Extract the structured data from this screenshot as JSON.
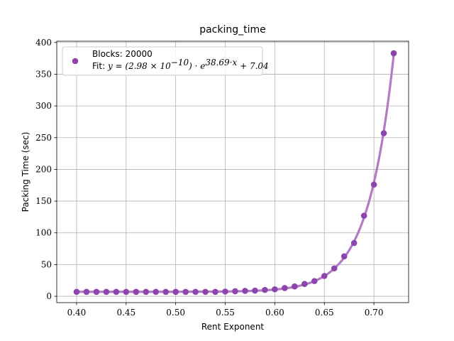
{
  "chart_data": {
    "type": "line",
    "title": "packing_time",
    "xlabel": "Rent Exponent",
    "ylabel": "Packing Time (sec)",
    "xlim": [
      0.38,
      0.735
    ],
    "ylim": [
      -10,
      402
    ],
    "x_ticks": [
      0.4,
      0.45,
      0.5,
      0.55,
      0.6,
      0.65,
      0.7
    ],
    "x_tick_labels": [
      "0.40",
      "0.45",
      "0.50",
      "0.55",
      "0.60",
      "0.65",
      "0.70"
    ],
    "y_ticks": [
      0,
      50,
      100,
      150,
      200,
      250,
      300,
      350,
      400
    ],
    "y_tick_labels": [
      "0",
      "50",
      "100",
      "150",
      "200",
      "250",
      "300",
      "350",
      "400"
    ],
    "grid": true,
    "legend_position": "top-left",
    "series": [
      {
        "name": "Blocks: 20000",
        "kind": "scatter",
        "color": "#8e44ad",
        "x": [
          0.4,
          0.41,
          0.42,
          0.43,
          0.44,
          0.45,
          0.46,
          0.47,
          0.48,
          0.49,
          0.5,
          0.51,
          0.52,
          0.53,
          0.54,
          0.55,
          0.56,
          0.57,
          0.58,
          0.59,
          0.6,
          0.61,
          0.62,
          0.63,
          0.64,
          0.65,
          0.66,
          0.67,
          0.68,
          0.69,
          0.7,
          0.71,
          0.72
        ],
        "y": [
          7,
          7,
          7,
          7,
          7,
          7,
          7,
          7,
          7,
          7,
          7,
          7,
          7,
          7,
          7,
          7.5,
          8,
          8.5,
          9,
          10,
          11,
          13,
          15.5,
          19.5,
          24,
          32,
          44,
          63,
          84,
          127,
          176,
          257,
          383
        ]
      },
      {
        "name": "Fit: y = (2.98 × 10^-10) · e^(38.69·x) + 7.04",
        "kind": "fit-line",
        "color": "#b07cc6",
        "fit": {
          "a": 2.98e-10,
          "b": 38.69,
          "c": 7.04
        }
      }
    ]
  },
  "legend": {
    "line1": "Blocks: 20000",
    "line2_prefix": "Fit: ",
    "line2_formula": "y = (2.98 × 10",
    "line2_exp1": "−10",
    "line2_mid": ") · e",
    "line2_exp2": "38.69·x",
    "line2_suffix": " + 7.04"
  }
}
